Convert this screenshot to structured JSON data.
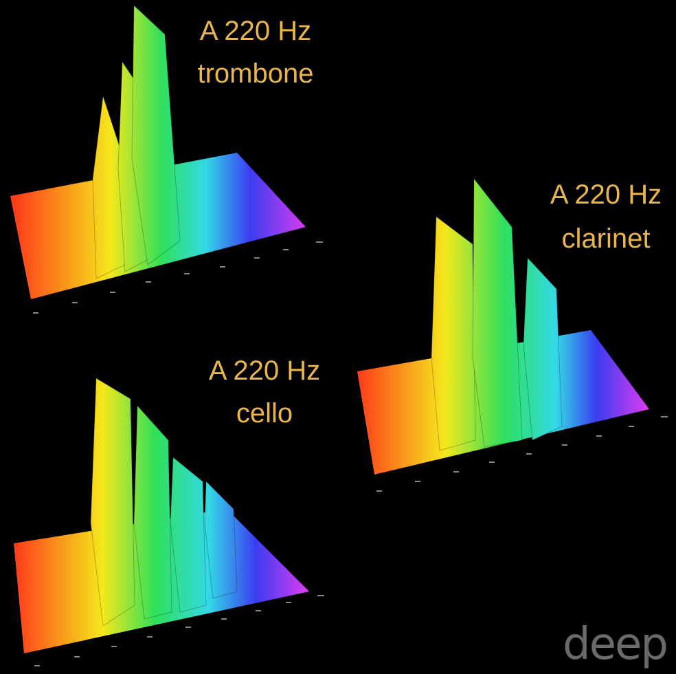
{
  "plots": [
    {
      "title": "A 220 Hz",
      "instrument": "trombone"
    },
    {
      "title": "A 220 Hz",
      "instrument": "clarinet"
    },
    {
      "title": "A 220 Hz",
      "instrument": "cello"
    }
  ],
  "watermark": "deep"
}
